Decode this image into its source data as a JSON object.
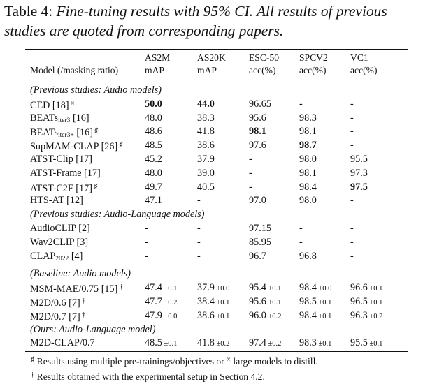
{
  "caption": {
    "label": "Table 4:",
    "text": "Fine-tuning results with 95% CI. All results of previous studies are quoted from corresponding papers."
  },
  "header": {
    "col0": "Model (/masking ratio)",
    "col1": [
      "AS2M",
      "mAP"
    ],
    "col2": [
      "AS20K",
      "mAP"
    ],
    "col3": [
      "ESC-50",
      "acc(%)"
    ],
    "col4": [
      "SPCV2",
      "acc(%)"
    ],
    "col5": [
      "VC1",
      "acc(%)"
    ]
  },
  "rows": [
    {
      "type": "section",
      "label": "(Previous studies: Audio models)"
    },
    {
      "type": "data",
      "name": "CED [18]",
      "mark": "×",
      "cells": [
        {
          "v": "50.0",
          "b": true
        },
        {
          "v": "44.0",
          "b": true
        },
        {
          "v": "96.65"
        },
        {
          "v": "-"
        },
        {
          "v": "-"
        }
      ]
    },
    {
      "type": "data",
      "name": "BEATs",
      "sub": "iter3",
      "suffix": " [16]",
      "cells": [
        {
          "v": "48.0"
        },
        {
          "v": "38.3"
        },
        {
          "v": "95.6"
        },
        {
          "v": "98.3"
        },
        {
          "v": "-"
        }
      ]
    },
    {
      "type": "data",
      "name": "BEATs",
      "sub": "iter3+",
      "suffix": " [16]",
      "mark": "♯",
      "cells": [
        {
          "v": "48.6"
        },
        {
          "v": "41.8"
        },
        {
          "v": "98.1",
          "b": true
        },
        {
          "v": "98.1"
        },
        {
          "v": "-"
        }
      ]
    },
    {
      "type": "data",
      "name": "SupMAM-CLAP [26]",
      "mark": "♯",
      "cells": [
        {
          "v": "48.5"
        },
        {
          "v": "38.6"
        },
        {
          "v": "97.6"
        },
        {
          "v": "98.7",
          "b": true
        },
        {
          "v": "-"
        }
      ]
    },
    {
      "type": "data",
      "name": "ATST-Clip [17]",
      "cells": [
        {
          "v": "45.2"
        },
        {
          "v": "37.9"
        },
        {
          "v": "-"
        },
        {
          "v": "98.0"
        },
        {
          "v": "95.5"
        }
      ]
    },
    {
      "type": "data",
      "name": "ATST-Frame [17]",
      "cells": [
        {
          "v": "48.0"
        },
        {
          "v": "39.0"
        },
        {
          "v": "-"
        },
        {
          "v": "98.1"
        },
        {
          "v": "97.3"
        }
      ]
    },
    {
      "type": "data",
      "name": "ATST-C2F [17]",
      "mark": "♯",
      "cells": [
        {
          "v": "49.7"
        },
        {
          "v": "40.5"
        },
        {
          "v": "-"
        },
        {
          "v": "98.4"
        },
        {
          "v": "97.5",
          "b": true
        }
      ]
    },
    {
      "type": "data",
      "name": "HTS-AT [12]",
      "cells": [
        {
          "v": "47.1"
        },
        {
          "v": "-"
        },
        {
          "v": "97.0"
        },
        {
          "v": "98.0"
        },
        {
          "v": "-"
        }
      ]
    },
    {
      "type": "section",
      "label": "(Previous studies: Audio-Language models)"
    },
    {
      "type": "data",
      "name": "AudioCLIP [2]",
      "cells": [
        {
          "v": "-"
        },
        {
          "v": "-"
        },
        {
          "v": "97.15"
        },
        {
          "v": "-"
        },
        {
          "v": "-"
        }
      ]
    },
    {
      "type": "data",
      "name": "Wav2CLIP [3]",
      "cells": [
        {
          "v": "-"
        },
        {
          "v": "-"
        },
        {
          "v": "85.95"
        },
        {
          "v": "-"
        },
        {
          "v": "-"
        }
      ]
    },
    {
      "type": "data",
      "name": "CLAP",
      "sub": "2022",
      "suffix": " [4]",
      "cells": [
        {
          "v": "-"
        },
        {
          "v": "-"
        },
        {
          "v": "96.7"
        },
        {
          "v": "96.8"
        },
        {
          "v": "-"
        }
      ]
    },
    {
      "type": "rule"
    },
    {
      "type": "section",
      "label": "(Baseline: Audio models)"
    },
    {
      "type": "data",
      "name": "MSM-MAE/0.75 [15]",
      "mark": "†",
      "cells": [
        {
          "v": "47.4",
          "ci": "±0.1"
        },
        {
          "v": "37.9",
          "ci": "±0.0"
        },
        {
          "v": "95.4",
          "ci": "±0.1"
        },
        {
          "v": "98.4",
          "ci": "±0.0"
        },
        {
          "v": "96.6",
          "ci": "±0.1"
        }
      ]
    },
    {
      "type": "data",
      "name": "M2D/0.6 [7]",
      "mark": "†",
      "cells": [
        {
          "v": "47.7",
          "ci": "±0.2"
        },
        {
          "v": "38.4",
          "ci": "±0.1"
        },
        {
          "v": "95.6",
          "ci": "±0.1"
        },
        {
          "v": "98.5",
          "ci": "±0.1"
        },
        {
          "v": "96.5",
          "ci": "±0.1"
        }
      ]
    },
    {
      "type": "data",
      "name": "M2D/0.7 [7]",
      "mark": "†",
      "cells": [
        {
          "v": "47.9",
          "ci": "±0.0"
        },
        {
          "v": "38.6",
          "ci": "±0.1"
        },
        {
          "v": "96.0",
          "ci": "±0.2"
        },
        {
          "v": "98.4",
          "ci": "±0.1"
        },
        {
          "v": "96.3",
          "ci": "±0.2"
        }
      ]
    },
    {
      "type": "section",
      "label": "(Ours: Audio-Language model)"
    },
    {
      "type": "data",
      "name": "M2D-CLAP/0.7",
      "cells": [
        {
          "v": "48.5",
          "ci": "±0.1"
        },
        {
          "v": "41.8",
          "ci": "±0.2"
        },
        {
          "v": "97.4",
          "ci": "±0.2"
        },
        {
          "v": "98.3",
          "ci": "±0.1"
        },
        {
          "v": "95.5",
          "ci": "±0.1"
        }
      ]
    }
  ],
  "notes": [
    {
      "mark": "♯",
      "pre": " Results using multiple pre-trainings/objectives or ",
      "mark2": "×",
      "post": " large models to distill."
    },
    {
      "mark": "†",
      "pre": " Results obtained with the experimental setup in Section 4.2.",
      "mark2": "",
      "post": ""
    }
  ]
}
